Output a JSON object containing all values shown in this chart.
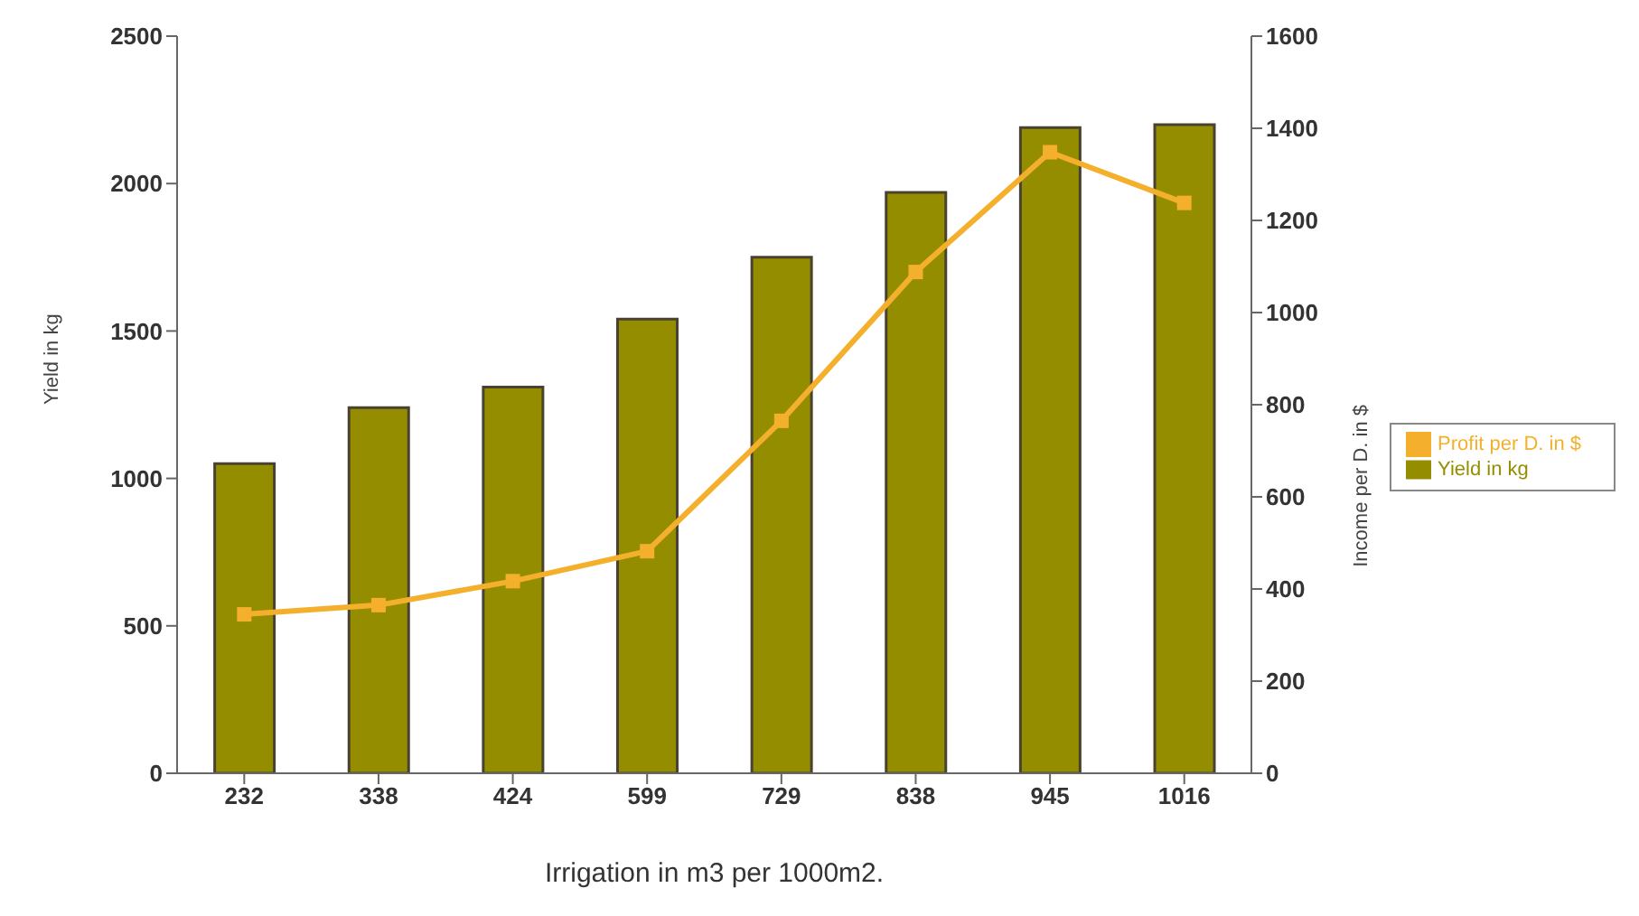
{
  "chart_data": {
    "type": "bar",
    "xlabel": "Irrigation in m3 per 1000m2.",
    "ylabel": "Yield in kg",
    "y2label": "Income per D. in $",
    "categories": [
      "232",
      "338",
      "424",
      "599",
      "729",
      "838",
      "945",
      "1016"
    ],
    "series": [
      {
        "name": "Yield in kg",
        "color": "#958d00",
        "values": [
          1050,
          1240,
          1310,
          1540,
          1750,
          1970,
          2190,
          2200
        ]
      },
      {
        "name": "Profit per D. in $",
        "type": "line",
        "axis": "y2",
        "color": "#f4b02c",
        "marker": "square",
        "values": [
          345,
          365,
          417,
          482,
          765,
          1088,
          1348,
          1238
        ]
      }
    ],
    "ylim": [
      0,
      2500
    ],
    "yticks": [
      0,
      500,
      1000,
      1500,
      2000,
      2500
    ],
    "y2lim": [
      0,
      1600
    ],
    "y2ticks": [
      0,
      200,
      400,
      600,
      800,
      1000,
      1200,
      1400,
      1600
    ],
    "grid": false,
    "legend": "right"
  }
}
